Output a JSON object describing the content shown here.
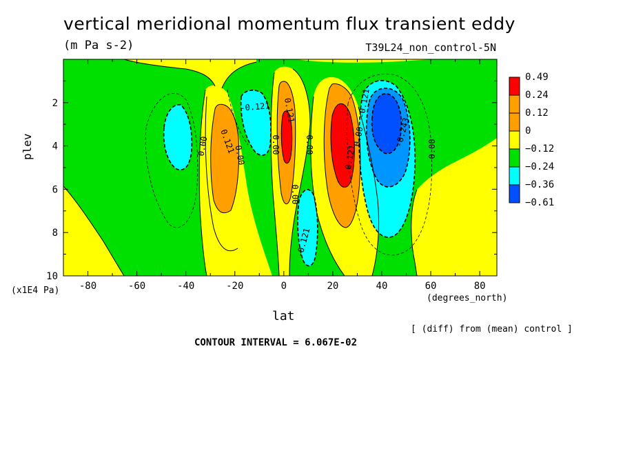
{
  "title": "vertical meridional momentum flux transient eddy",
  "units": "(m Pa s-2)",
  "run_label": "T39L24_non_control-5N",
  "ylabel": "plev",
  "yunits": "(x1E4 Pa)",
  "xlabel": "lat",
  "xunits": "(degrees_north)",
  "diff_note": "[ (diff) from (mean) control ]",
  "contour_interval": "CONTOUR INTERVAL = 6.067E-02",
  "colors": {
    "red": "#ff0000",
    "orange": "#ffa000",
    "yellow": "#ffff00",
    "green": "#00e000",
    "cyan": "#00ffff",
    "lightblue": "#0096ff",
    "blue": "#0050ff"
  },
  "chart_data": {
    "type": "heatmap",
    "xlim": [
      -90,
      87
    ],
    "ylim": [
      10,
      0
    ],
    "xticks": [
      -80,
      -60,
      -40,
      -20,
      0,
      20,
      40,
      60,
      80
    ],
    "yticks": [
      2,
      4,
      6,
      8,
      10
    ],
    "legend": {
      "placement": "right",
      "labels": [
        "0.49",
        "0.24",
        "0.12",
        "0",
        "−0.12",
        "−0.24",
        "−0.36",
        "−0.61"
      ],
      "colors": [
        "#ff0000",
        "#ffa000",
        "#ffa000",
        "#ffff00",
        "#00e000",
        "#00ffff",
        "#0096ff",
        "#0050ff"
      ]
    },
    "contour_labels": [
      "0.00",
      "0.121",
      "0.00",
      "-0.121",
      "0.00",
      "0.121",
      "0.00",
      "0.00",
      "-0.121",
      "0.121",
      "0.00",
      "-0.121",
      "-0.243",
      "0.00"
    ]
  }
}
